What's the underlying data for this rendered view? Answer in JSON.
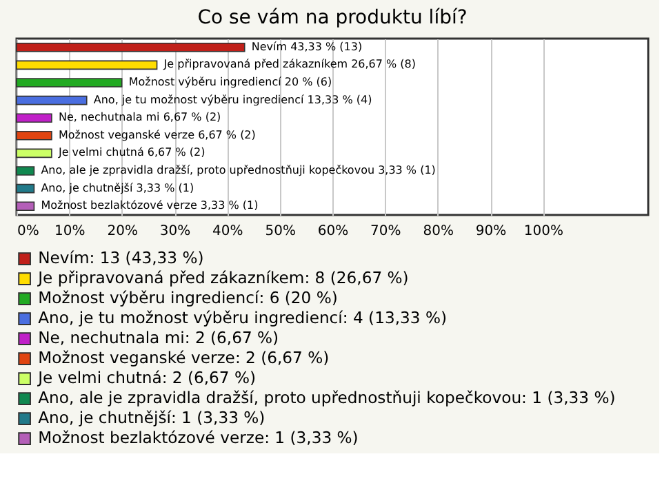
{
  "chart_data": {
    "type": "bar",
    "orientation": "horizontal",
    "stacked": true,
    "title": "Co se vám na produktu líbí?",
    "categories": [
      null,
      null,
      null,
      null,
      null,
      null,
      null,
      null,
      null,
      null
    ],
    "series": [
      {
        "name": "Nevím: 13 (43,33 %)",
        "color": "#c0201a",
        "values": [
          43.33,
          null,
          null,
          null,
          null,
          null,
          null,
          null,
          null,
          null
        ],
        "value_labels": [
          "Nevím 43,33 % (13)",
          null,
          null,
          null,
          null,
          null,
          null,
          null,
          null,
          null
        ]
      },
      {
        "name": "Je připravovaná před zákazníkem: 8 (26,67 %)",
        "color": "#ffdd00",
        "values": [
          null,
          26.67,
          null,
          null,
          null,
          null,
          null,
          null,
          null,
          null
        ],
        "value_labels": [
          null,
          "Je připravovaná před zákazníkem 26,67 % (8)",
          null,
          null,
          null,
          null,
          null,
          null,
          null,
          null
        ]
      },
      {
        "name": "Možnost výběru ingrediencí: 6 (20 %)",
        "color": "#22aa22",
        "values": [
          null,
          null,
          20,
          null,
          null,
          null,
          null,
          null,
          null,
          null
        ],
        "value_labels": [
          null,
          null,
          "Možnost výběru ingrediencí 20 % (6)",
          null,
          null,
          null,
          null,
          null,
          null,
          null
        ]
      },
      {
        "name": "Ano, je tu možnost výběru ingrediencí: 4 (13,33 %)",
        "color": "#4a6ee0",
        "values": [
          null,
          null,
          null,
          13.33,
          null,
          null,
          null,
          null,
          null,
          null
        ],
        "value_labels": [
          null,
          null,
          null,
          "Ano, je tu možnost výběru ingrediencí 13,33 % (4)",
          null,
          null,
          null,
          null,
          null,
          null
        ]
      },
      {
        "name": "Ne, nechutnala mi: 2 (6,67 %)",
        "color": "#c020c8",
        "values": [
          null,
          null,
          null,
          null,
          6.67,
          null,
          null,
          null,
          null,
          null
        ],
        "value_labels": [
          null,
          null,
          null,
          null,
          "Ne, nechutnala mi 6,67 % (2)",
          null,
          null,
          null,
          null,
          null
        ]
      },
      {
        "name": "Možnost veganské verze: 2 (6,67 %)",
        "color": "#e04410",
        "values": [
          null,
          null,
          null,
          null,
          null,
          6.67,
          null,
          null,
          null,
          null
        ],
        "value_labels": [
          null,
          null,
          null,
          null,
          null,
          "Možnost veganské verze 6,67 % (2)",
          null,
          null,
          null,
          null
        ]
      },
      {
        "name": "Je velmi chutná: 2 (6,67 %)",
        "color": "#ccff66",
        "values": [
          null,
          null,
          null,
          null,
          null,
          null,
          6.67,
          null,
          null,
          null
        ],
        "value_labels": [
          null,
          null,
          null,
          null,
          null,
          null,
          "Je velmi chutná 6,67 % (2)",
          null,
          null,
          null
        ]
      },
      {
        "name": "Ano, ale je zpravidla dražší, proto upřednostňuji kopečkovou: 1 (3,33 %)",
        "color": "#108850",
        "values": [
          null,
          null,
          null,
          null,
          null,
          null,
          null,
          3.33,
          null,
          null
        ],
        "value_labels": [
          null,
          null,
          null,
          null,
          null,
          null,
          null,
          "Ano, ale je zpravidla dražší, proto upřednostňuji kopečkovou 3,33 % (1)",
          null,
          null
        ]
      },
      {
        "name": "Ano, je chutnější: 1 (3,33 %)",
        "color": "#217a8a",
        "values": [
          null,
          null,
          null,
          null,
          null,
          null,
          null,
          null,
          3.33,
          null
        ],
        "value_labels": [
          null,
          null,
          null,
          null,
          null,
          null,
          null,
          null,
          "Ano, je chutnější 3,33 % (1)",
          null
        ]
      },
      {
        "name": "Možnost bezlaktózové verze: 1 (3,33 %)",
        "color": "#b45fb8",
        "values": [
          null,
          null,
          null,
          null,
          null,
          null,
          null,
          null,
          null,
          3.33
        ],
        "value_labels": [
          null,
          null,
          null,
          null,
          null,
          null,
          null,
          null,
          null,
          "Možnost bezlaktózové verze 3,33 % (1)"
        ]
      }
    ],
    "xlim": [
      0,
      120
    ],
    "xticks": [
      {
        "value": 0,
        "label": "0%"
      },
      {
        "value": 10,
        "label": "10%"
      },
      {
        "value": 20,
        "label": "20%"
      },
      {
        "value": 30,
        "label": "30%"
      },
      {
        "value": 40,
        "label": "40%"
      },
      {
        "value": 50,
        "label": "50%"
      },
      {
        "value": 60,
        "label": "60%"
      },
      {
        "value": 70,
        "label": "70%"
      },
      {
        "value": 80,
        "label": "80%"
      },
      {
        "value": 90,
        "label": "90%"
      },
      {
        "value": 100,
        "label": "100%"
      }
    ],
    "grid": "x",
    "legend": "bottom",
    "tick_labels": "x"
  }
}
